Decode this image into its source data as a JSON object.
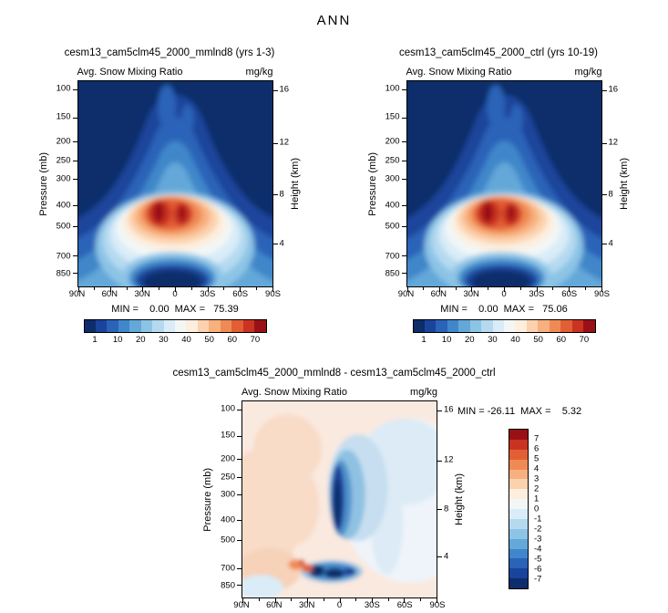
{
  "title": "ANN",
  "field_label": "Avg. Snow Mixing Ratio",
  "units": "mg/kg",
  "axes": {
    "pressure_label": "Pressure (mb)",
    "height_label": "Height (km)",
    "pressure_ticks": [
      "100",
      "150",
      "200",
      "250",
      "300",
      "400",
      "500",
      "700",
      "850"
    ],
    "height_ticks": [
      "16",
      "12",
      "8",
      "4"
    ],
    "lat_ticks": [
      "90N",
      "60N",
      "30N",
      "0",
      "30S",
      "60S",
      "90S"
    ]
  },
  "panels": [
    {
      "title": "cesm13_cam5clm45_2000_mmlnd8 (yrs 1-3)",
      "stats": "MIN =    0.00  MAX =   75.39",
      "min": 0.0,
      "max": 75.39
    },
    {
      "title": "cesm13_cam5clm45_2000_ctrl (yrs 10-19)",
      "stats": "MIN =    0.00  MAX =   75.06",
      "min": 0.0,
      "max": 75.06
    },
    {
      "title": "cesm13_cam5clm45_2000_mmlnd8 - cesm13_cam5clm45_2000_ctrl",
      "stats": "MIN = -26.11  MAX =    5.32",
      "min": -26.11,
      "max": 5.32
    }
  ],
  "colorbar_main": {
    "labels": [
      "1",
      "10",
      "20",
      "30",
      "40",
      "50",
      "60",
      "70"
    ],
    "colors": [
      "#0d2d6b",
      "#1a449b",
      "#2a63b8",
      "#3f87ca",
      "#63a8d8",
      "#8cc4e6",
      "#b5daf0",
      "#d9ecf8",
      "#f2f7f5",
      "#fdeede",
      "#fbd2ad",
      "#f8b07e",
      "#f08a55",
      "#e25f35",
      "#c93321",
      "#991117"
    ]
  },
  "colorbar_diff": {
    "labels": [
      "7",
      "6",
      "5",
      "4",
      "3",
      "2",
      "1",
      "0",
      "-1",
      "-2",
      "-3",
      "-4",
      "-5",
      "-6",
      "-7"
    ],
    "colors": [
      "#991117",
      "#c93321",
      "#e25f35",
      "#f08a55",
      "#f8b07e",
      "#fbd2ad",
      "#fdeede",
      "#f2f7f5",
      "#d9ecf8",
      "#b5daf0",
      "#8cc4e6",
      "#63a8d8",
      "#3f87ca",
      "#2a63b8",
      "#1a449b",
      "#0d2d6b"
    ]
  },
  "chart_data": [
    {
      "type": "heatmap",
      "plot_kind": "latitude-pressure filled contour",
      "season": "ANN",
      "title": "cesm13_cam5clm45_2000_mmlnd8 (yrs 1-3)",
      "variable": "Avg. Snow Mixing Ratio",
      "units": "mg/kg",
      "x_ticks": [
        "90N",
        "60N",
        "30N",
        "0",
        "30S",
        "60S",
        "90S"
      ],
      "ylabel": "Pressure (mb)",
      "y_ticks": [
        100,
        150,
        200,
        250,
        300,
        400,
        500,
        700,
        850
      ],
      "y2label": "Height (km)",
      "y2_ticks": [
        16,
        12,
        8,
        4
      ],
      "contour_levels": [
        1,
        5,
        10,
        15,
        20,
        25,
        30,
        35,
        40,
        45,
        50,
        55,
        60,
        65,
        70
      ],
      "labeled_levels": [
        1,
        10,
        20,
        30,
        40,
        50,
        60,
        70
      ],
      "min": 0.0,
      "max": 75.39,
      "legend_position": "bottom",
      "grid": false,
      "pattern": "Maximum (>70 mg/kg) in twin dark-red cores near 15N and 5S at 400-500 mb; values decrease in concentric bands to <1 mg/kg above ~150 mb and in a dark equatorial pocket at 700-850 mb"
    },
    {
      "type": "heatmap",
      "plot_kind": "latitude-pressure filled contour",
      "season": "ANN",
      "title": "cesm13_cam5clm45_2000_ctrl (yrs 10-19)",
      "variable": "Avg. Snow Mixing Ratio",
      "units": "mg/kg",
      "x_ticks": [
        "90N",
        "60N",
        "30N",
        "0",
        "30S",
        "60S",
        "90S"
      ],
      "ylabel": "Pressure (mb)",
      "y_ticks": [
        100,
        150,
        200,
        250,
        300,
        400,
        500,
        700,
        850
      ],
      "y2label": "Height (km)",
      "y2_ticks": [
        16,
        12,
        8,
        4
      ],
      "contour_levels": [
        1,
        5,
        10,
        15,
        20,
        25,
        30,
        35,
        40,
        45,
        50,
        55,
        60,
        65,
        70
      ],
      "labeled_levels": [
        1,
        10,
        20,
        30,
        40,
        50,
        60,
        70
      ],
      "min": 0.0,
      "max": 75.06,
      "legend_position": "bottom",
      "grid": false,
      "pattern": "Nearly identical to the mmlnd8 case: twin maxima near the equator at 400-500 mb, low values aloft and in the near-surface equatorial pocket"
    },
    {
      "type": "heatmap",
      "plot_kind": "latitude-pressure filled contour difference",
      "season": "ANN",
      "title": "cesm13_cam5clm45_2000_mmlnd8 - cesm13_cam5clm45_2000_ctrl",
      "variable": "Avg. Snow Mixing Ratio",
      "units": "mg/kg",
      "x_ticks": [
        "90N",
        "60N",
        "30N",
        "0",
        "30S",
        "60S",
        "90S"
      ],
      "ylabel": "Pressure (mb)",
      "y_ticks": [
        100,
        150,
        200,
        250,
        300,
        400,
        500,
        700,
        850
      ],
      "y2label": "Height (km)",
      "y2_ticks": [
        16,
        12,
        8,
        4
      ],
      "contour_levels": [
        -7,
        -6,
        -5,
        -4,
        -3,
        -2,
        -1,
        0,
        1,
        2,
        3,
        4,
        5,
        6,
        7
      ],
      "min": -26.11,
      "max": 5.32,
      "legend_position": "right",
      "grid": false,
      "pattern": "Mostly weak positive differences (pale orange) over the northern half; strong negative column (< -7) just north of the equator between 300 and 600 mb, dark negative spots near 700 mb from 30N to 10S, small positive spots near 700 mb around 40N, pale blue over the southern hemisphere"
    }
  ]
}
